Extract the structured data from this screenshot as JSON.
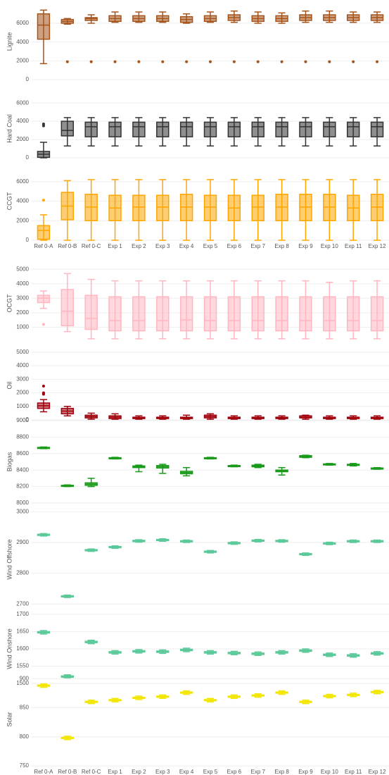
{
  "chart_data": [
    {
      "type": "box",
      "ylabel": "Lignite",
      "color": "#a5541c",
      "ylim": [
        0,
        8100
      ],
      "yticks": [
        0,
        2000,
        4000,
        6000
      ],
      "min": [
        1700,
        5900,
        6000,
        6100,
        6100,
        6100,
        6000,
        6100,
        6100,
        6000,
        6000,
        6100,
        6100,
        6100,
        6100
      ],
      "q1": [
        4300,
        6000,
        6300,
        6200,
        6200,
        6200,
        6100,
        6200,
        6300,
        6200,
        6200,
        6300,
        6300,
        6300,
        6300
      ],
      "median": [
        5800,
        6200,
        6500,
        6500,
        6500,
        6500,
        6400,
        6500,
        6600,
        6500,
        6500,
        6600,
        6600,
        6600,
        6600
      ],
      "q3": [
        7000,
        6400,
        6600,
        6800,
        6800,
        6800,
        6700,
        6800,
        6900,
        6800,
        6800,
        6900,
        6900,
        6900,
        6900
      ],
      "max": [
        7400,
        6500,
        6900,
        7200,
        7200,
        7200,
        7000,
        7200,
        7300,
        7200,
        7100,
        7300,
        7300,
        7200,
        7200
      ],
      "outliers": [
        [],
        [
          1900
        ],
        [
          1900
        ],
        [
          1900
        ],
        [
          1900
        ],
        [
          1900
        ],
        [
          1900
        ],
        [
          1900
        ],
        [
          1900
        ],
        [
          1900
        ],
        [
          1900
        ],
        [
          1900
        ],
        [
          1900
        ],
        [
          1900
        ],
        [
          1900
        ]
      ]
    },
    {
      "type": "box",
      "ylabel": "Hard Coal",
      "color": "#333333",
      "ylim": [
        0,
        6400
      ],
      "yticks": [
        0,
        2000,
        4000,
        6000
      ],
      "min": [
        0,
        1300,
        1300,
        1300,
        1300,
        1300,
        1300,
        1300,
        1300,
        1300,
        1300,
        1300,
        1300,
        1300,
        1300
      ],
      "q1": [
        50,
        2400,
        2300,
        2300,
        2300,
        2300,
        2300,
        2300,
        2300,
        2300,
        2300,
        2300,
        2300,
        2300,
        2300
      ],
      "median": [
        400,
        3000,
        3400,
        3400,
        3400,
        3400,
        3400,
        3400,
        3400,
        3400,
        3400,
        3400,
        3400,
        3400,
        3400
      ],
      "q3": [
        700,
        4000,
        3900,
        3900,
        3900,
        3900,
        3900,
        3900,
        3900,
        3900,
        3900,
        3900,
        3900,
        3900,
        3900
      ],
      "max": [
        1700,
        4400,
        4400,
        4400,
        4400,
        4400,
        4400,
        4400,
        4400,
        4400,
        4400,
        4400,
        4400,
        4400,
        4400
      ],
      "outliers": [
        [
          3500,
          3700
        ],
        [],
        [],
        [],
        [],
        [],
        [],
        [],
        [],
        [],
        [],
        [],
        [],
        [],
        []
      ]
    },
    {
      "type": "box",
      "ylabel": "CCGT",
      "color": "#ffa500",
      "ylim": [
        0,
        8000
      ],
      "yticks": [
        0,
        2000,
        4000,
        6000
      ],
      "categories": [
        "Ref 0-A",
        "Ref 0-B",
        "Ref 0-C",
        "Exp 1",
        "Exp 2",
        "Exp 3",
        "Exp 4",
        "Exp 5",
        "Exp 6",
        "Exp 7",
        "Exp 8",
        "Exp 9",
        "Exp 10",
        "Exp 11",
        "Exp 12"
      ],
      "min": [
        0,
        0,
        0,
        0,
        0,
        0,
        0,
        0,
        0,
        0,
        0,
        0,
        0,
        0,
        0
      ],
      "q1": [
        100,
        2100,
        2000,
        2000,
        2000,
        2000,
        2000,
        2000,
        2000,
        2000,
        2000,
        2000,
        2000,
        2000,
        2000
      ],
      "median": [
        1000,
        3500,
        3400,
        3300,
        3400,
        3400,
        3400,
        3400,
        3300,
        3400,
        3400,
        3400,
        3400,
        3300,
        3400
      ],
      "q3": [
        1500,
        4900,
        4700,
        4600,
        4600,
        4600,
        4700,
        4600,
        4600,
        4600,
        4700,
        4700,
        4700,
        4600,
        4700
      ],
      "max": [
        2600,
        6100,
        6200,
        6200,
        6200,
        6200,
        6200,
        6200,
        6200,
        6200,
        6200,
        6200,
        6200,
        6200,
        6200
      ],
      "outliers": [
        [
          4100
        ],
        [],
        [],
        [],
        [],
        [],
        [],
        [],
        [],
        [],
        [],
        [],
        [],
        [],
        []
      ]
    },
    {
      "type": "box",
      "ylabel": "OCGT",
      "color": "#ffb6c1",
      "ylim": [
        0,
        5300
      ],
      "yticks": [
        1000,
        2000,
        3000,
        4000,
        5000
      ],
      "min": [
        2300,
        700,
        200,
        200,
        200,
        200,
        200,
        200,
        200,
        200,
        200,
        200,
        200,
        200,
        200
      ],
      "q1": [
        2700,
        1100,
        850,
        750,
        750,
        750,
        750,
        750,
        750,
        750,
        750,
        750,
        750,
        750,
        750
      ],
      "median": [
        3000,
        2100,
        1600,
        1450,
        1450,
        1450,
        1500,
        1450,
        1450,
        1450,
        1450,
        1450,
        1450,
        1450,
        1450
      ],
      "q3": [
        3200,
        3600,
        3200,
        3100,
        3100,
        3100,
        3100,
        3100,
        3100,
        3100,
        3100,
        3100,
        3100,
        3100,
        3100
      ],
      "max": [
        3500,
        4700,
        4300,
        4200,
        4200,
        4200,
        4200,
        4200,
        4200,
        4200,
        4200,
        4200,
        4100,
        4200,
        4200
      ],
      "outliers": [
        [
          1200
        ],
        [],
        [],
        [],
        [],
        [],
        [],
        [],
        [],
        [],
        [],
        [],
        [],
        [],
        []
      ]
    },
    {
      "type": "box",
      "ylabel": "Oil",
      "color": "#a0000c",
      "ylim": [
        0,
        5100
      ],
      "yticks": [
        0,
        1000,
        2000,
        3000,
        4000,
        5000
      ],
      "min": [
        600,
        300,
        50,
        50,
        50,
        50,
        50,
        50,
        50,
        50,
        50,
        50,
        50,
        50,
        50
      ],
      "q1": [
        850,
        450,
        150,
        100,
        100,
        100,
        100,
        150,
        100,
        100,
        100,
        150,
        100,
        100,
        100
      ],
      "median": [
        1050,
        650,
        250,
        200,
        150,
        150,
        150,
        250,
        150,
        150,
        150,
        200,
        150,
        150,
        150
      ],
      "q3": [
        1250,
        850,
        350,
        300,
        200,
        200,
        200,
        350,
        200,
        200,
        200,
        300,
        200,
        200,
        200
      ],
      "max": [
        1500,
        1000,
        500,
        450,
        300,
        300,
        350,
        450,
        300,
        300,
        300,
        350,
        300,
        300,
        300
      ],
      "outliers": [
        [
          1900,
          2000,
          2500
        ],
        [],
        [],
        [],
        [],
        [],
        [],
        [],
        [],
        [],
        [],
        [],
        [],
        [],
        []
      ]
    },
    {
      "type": "box",
      "ylabel": "Biogas",
      "color": "#1a9a1a",
      "ylim": [
        8000,
        9000
      ],
      "yticks": [
        8000,
        8200,
        8400,
        8600,
        8800,
        9000
      ],
      "min": [
        8660,
        8200,
        8200,
        8535,
        8380,
        8360,
        8330,
        8535,
        8440,
        8430,
        8340,
        8550,
        8460,
        8450,
        8410
      ],
      "q1": [
        8665,
        8205,
        8215,
        8540,
        8430,
        8425,
        8355,
        8540,
        8445,
        8440,
        8380,
        8555,
        8465,
        8460,
        8415
      ],
      "median": [
        8670,
        8210,
        8230,
        8545,
        8440,
        8440,
        8370,
        8545,
        8450,
        8450,
        8390,
        8565,
        8470,
        8465,
        8420
      ],
      "q3": [
        8675,
        8215,
        8245,
        8550,
        8450,
        8455,
        8385,
        8550,
        8455,
        8460,
        8400,
        8575,
        8475,
        8470,
        8425
      ],
      "max": [
        8680,
        8220,
        8300,
        8555,
        8460,
        8470,
        8430,
        8555,
        8460,
        8470,
        8430,
        8580,
        8480,
        8480,
        8430
      ]
    },
    {
      "type": "box",
      "ylabel": "Wind Offshore",
      "color": "#5cc99a",
      "ylim": [
        2680,
        3010
      ],
      "yticks": [
        2700,
        2800,
        2900,
        3000
      ],
      "min": [
        2921,
        2721,
        2871,
        2881,
        2901,
        2904,
        2900,
        2866,
        2894,
        2902,
        2901,
        2858,
        2893,
        2900,
        2900
      ],
      "q1": [
        2923,
        2723,
        2873,
        2883,
        2903,
        2906,
        2902,
        2868,
        2896,
        2904,
        2903,
        2860,
        2895,
        2902,
        2902
      ],
      "median": [
        2925,
        2725,
        2875,
        2885,
        2905,
        2908,
        2904,
        2870,
        2898,
        2906,
        2905,
        2862,
        2897,
        2904,
        2904
      ],
      "q3": [
        2927,
        2727,
        2877,
        2887,
        2907,
        2910,
        2906,
        2872,
        2900,
        2908,
        2907,
        2864,
        2899,
        2906,
        2906
      ],
      "max": [
        2929,
        2729,
        2879,
        2889,
        2909,
        2912,
        2908,
        2874,
        2902,
        2910,
        2909,
        2866,
        2901,
        2908,
        2908
      ]
    },
    {
      "type": "box",
      "ylabel": "Wind Onshore",
      "color": "#5cc99a",
      "ylim": [
        1490,
        1710
      ],
      "yticks": [
        1500,
        1550,
        1600,
        1650,
        1700
      ],
      "min": [
        1643,
        1515,
        1615,
        1585,
        1588,
        1587,
        1592,
        1585,
        1583,
        1581,
        1585,
        1590,
        1578,
        1576,
        1582
      ],
      "q1": [
        1646,
        1518,
        1618,
        1588,
        1591,
        1590,
        1595,
        1588,
        1586,
        1584,
        1588,
        1593,
        1581,
        1579,
        1585
      ],
      "median": [
        1648,
        1520,
        1620,
        1590,
        1593,
        1592,
        1597,
        1590,
        1588,
        1586,
        1590,
        1595,
        1583,
        1581,
        1587
      ],
      "q3": [
        1650,
        1522,
        1622,
        1592,
        1595,
        1594,
        1599,
        1592,
        1590,
        1588,
        1592,
        1597,
        1585,
        1583,
        1589
      ],
      "max": [
        1653,
        1525,
        1625,
        1595,
        1598,
        1597,
        1602,
        1595,
        1593,
        1591,
        1595,
        1600,
        1588,
        1586,
        1592
      ]
    },
    {
      "type": "box",
      "ylabel": "Solar",
      "color": "#f2e600",
      "ylim": [
        750,
        910
      ],
      "yticks": [
        750,
        800,
        850,
        900
      ],
      "categories": [
        "Ref 0-A",
        "Ref 0-B",
        "Ref 0-C",
        "Exp 1",
        "Exp 2",
        "Exp 3",
        "Exp 4",
        "Exp 5",
        "Exp 6",
        "Exp 7",
        "Exp 8",
        "Exp 9",
        "Exp 10",
        "Exp 11",
        "Exp 12"
      ],
      "min": [
        885,
        795,
        857,
        860,
        864,
        866,
        873,
        860,
        866,
        868,
        873,
        857,
        867,
        869,
        874
      ],
      "q1": [
        887,
        797,
        859,
        862,
        866,
        868,
        875,
        862,
        868,
        870,
        875,
        859,
        869,
        871,
        876
      ],
      "median": [
        888,
        798,
        860,
        863,
        867,
        869,
        876,
        863,
        869,
        871,
        876,
        860,
        870,
        872,
        877
      ],
      "q3": [
        889,
        799,
        861,
        864,
        868,
        870,
        877,
        864,
        870,
        872,
        877,
        861,
        871,
        873,
        878
      ],
      "max": [
        891,
        801,
        863,
        866,
        870,
        872,
        879,
        866,
        872,
        874,
        879,
        863,
        873,
        875,
        880
      ]
    }
  ]
}
